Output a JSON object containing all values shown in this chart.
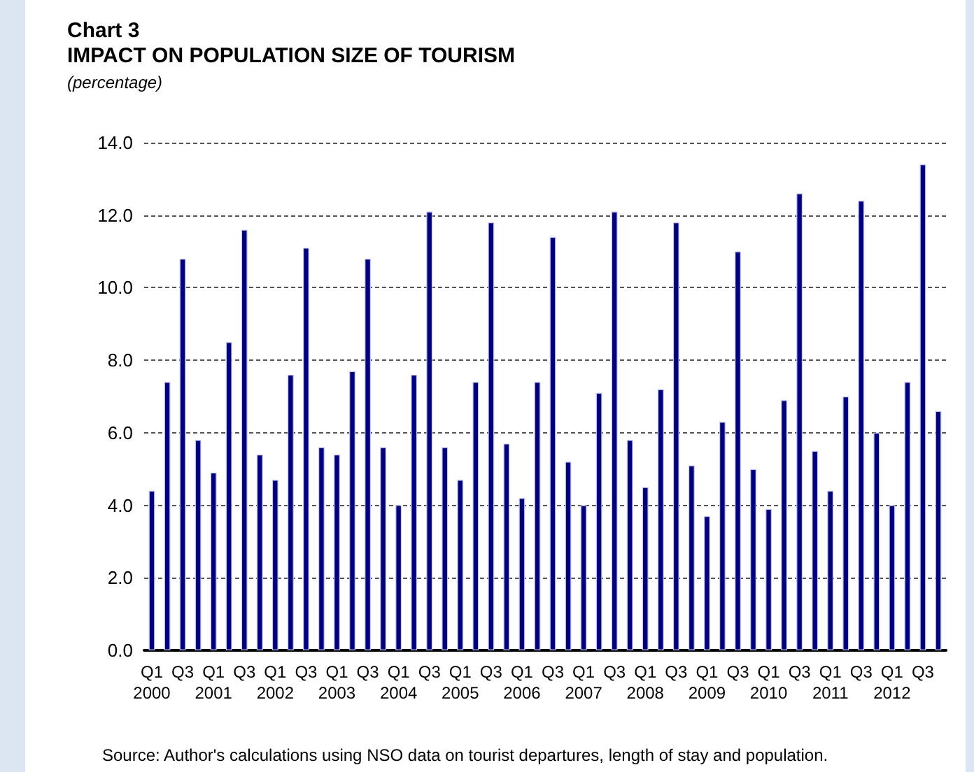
{
  "chart_data": {
    "type": "bar",
    "title": "Chart 3\nIMPACT ON POPULATION SIZE OF TOURISM",
    "subtitle": "(percentage)",
    "categories": [
      "Q1\n2000",
      null,
      "Q3",
      null,
      "Q1\n2001",
      null,
      "Q3",
      null,
      "Q1\n2002",
      null,
      "Q3",
      null,
      "Q1\n2003",
      null,
      "Q3",
      null,
      "Q1\n2004",
      null,
      "Q3",
      null,
      "Q1\n2005",
      null,
      "Q3",
      null,
      "Q1\n2006",
      null,
      "Q3",
      null,
      "Q1\n2007",
      null,
      "Q3",
      null,
      "Q1\n2008",
      null,
      "Q3",
      null,
      "Q1\n2009",
      null,
      "Q3",
      null,
      "Q1\n2010",
      null,
      "Q3",
      null,
      "Q1\n2011",
      null,
      "Q3",
      null,
      "Q1\n2012",
      null,
      "Q3",
      null
    ],
    "values": [
      4.4,
      7.4,
      10.8,
      5.8,
      4.9,
      8.5,
      11.6,
      5.4,
      4.7,
      7.6,
      11.1,
      5.6,
      5.4,
      7.7,
      10.8,
      5.6,
      4.0,
      7.6,
      12.1,
      5.6,
      4.7,
      7.4,
      11.8,
      5.7,
      4.2,
      7.4,
      11.4,
      5.2,
      4.0,
      7.1,
      12.1,
      5.8,
      4.5,
      7.2,
      11.8,
      5.1,
      3.7,
      6.3,
      11.0,
      5.0,
      3.9,
      6.9,
      12.6,
      5.5,
      4.4,
      7.0,
      12.4,
      6.0,
      4.0,
      7.4,
      13.4,
      6.6
    ],
    "color": "#000080",
    "ylim": [
      0,
      14
    ],
    "yticks": [
      {
        "value": 0,
        "label": "0.0"
      },
      {
        "value": 2,
        "label": "2.0"
      },
      {
        "value": 4,
        "label": "4.0"
      },
      {
        "value": 6,
        "label": "6.0"
      },
      {
        "value": 8,
        "label": "8.0"
      },
      {
        "value": 10,
        "label": "10.0"
      },
      {
        "value": 12,
        "label": "12.0"
      },
      {
        "value": 14,
        "label": "14.0"
      }
    ],
    "grid": "y",
    "annotations": [
      "Source: Author's calculations using NSO data on tourist departures, length of stay and population."
    ]
  }
}
